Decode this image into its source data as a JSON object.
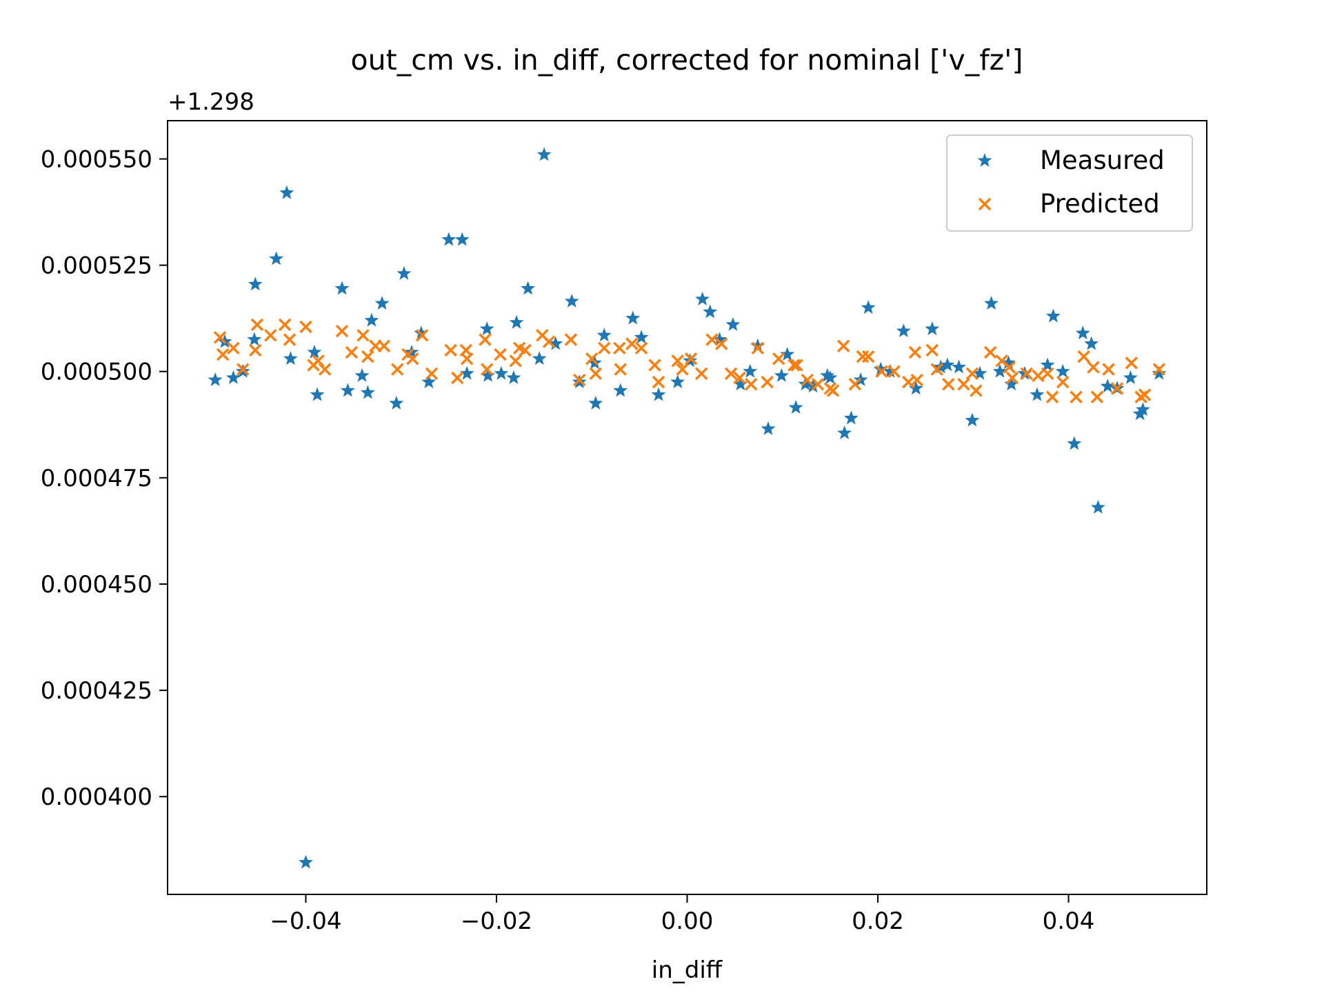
{
  "chart_data": {
    "type": "scatter",
    "title": "out_cm vs. in_diff, corrected for nominal ['v_fz']",
    "xlabel": "in_diff",
    "ylabel": "",
    "offset_label": "+1.298",
    "y_offset": 1.298,
    "xlim": [
      -0.0545,
      0.0545
    ],
    "ylim": [
      0.000377,
      0.000559
    ],
    "x_ticks": [
      -0.04,
      -0.02,
      0.0,
      0.02,
      0.04
    ],
    "x_tick_labels": [
      "−0.04",
      "−0.02",
      "0.00",
      "0.02",
      "0.04"
    ],
    "y_ticks": [
      0.0004,
      0.000425,
      0.00045,
      0.000475,
      0.0005,
      0.000525,
      0.00055
    ],
    "y_tick_labels": [
      "0.000400",
      "0.000425",
      "0.000450",
      "0.000475",
      "0.000500",
      "0.000525",
      "0.000550"
    ],
    "grid": false,
    "legend": {
      "position": "top-right",
      "entries": [
        "Measured",
        "Predicted"
      ]
    },
    "series": [
      {
        "name": "Measured",
        "marker": "star",
        "color": "#1f77b4",
        "points": [
          [
            -0.0495,
            0.000498
          ],
          [
            -0.0485,
            0.000507
          ],
          [
            -0.0476,
            0.0004985
          ],
          [
            -0.0466,
            0.0005
          ],
          [
            -0.0454,
            0.0005075
          ],
          [
            -0.0453,
            0.0005205
          ],
          [
            -0.0431,
            0.0005265
          ],
          [
            -0.042,
            0.000542
          ],
          [
            -0.0416,
            0.000503
          ],
          [
            -0.04,
            0.0003845
          ],
          [
            -0.0391,
            0.0005045
          ],
          [
            -0.0388,
            0.0004945
          ],
          [
            -0.0362,
            0.0005195
          ],
          [
            -0.0356,
            0.0004955
          ],
          [
            -0.0341,
            0.000499
          ],
          [
            -0.0335,
            0.000495
          ],
          [
            -0.0331,
            0.000512
          ],
          [
            -0.032,
            0.000516
          ],
          [
            -0.0305,
            0.0004925
          ],
          [
            -0.0297,
            0.000523
          ],
          [
            -0.0289,
            0.0005045
          ],
          [
            -0.0279,
            0.000509
          ],
          [
            -0.0271,
            0.0004975
          ],
          [
            -0.025,
            0.000531
          ],
          [
            -0.0236,
            0.000531
          ],
          [
            -0.0231,
            0.0004995
          ],
          [
            -0.021,
            0.00051
          ],
          [
            -0.0209,
            0.000499
          ],
          [
            -0.0195,
            0.0004995
          ],
          [
            -0.0182,
            0.0004985
          ],
          [
            -0.0179,
            0.0005115
          ],
          [
            -0.0167,
            0.0005195
          ],
          [
            -0.0155,
            0.000503
          ],
          [
            -0.015,
            0.000551
          ],
          [
            -0.0138,
            0.0005065
          ],
          [
            -0.0121,
            0.0005165
          ],
          [
            -0.0113,
            0.0004975
          ],
          [
            -0.0097,
            0.000502
          ],
          [
            -0.0096,
            0.0004925
          ],
          [
            -0.0087,
            0.0005085
          ],
          [
            -0.007,
            0.0004955
          ],
          [
            -0.0057,
            0.0005125
          ],
          [
            -0.0048,
            0.000508
          ],
          [
            -0.003,
            0.0004945
          ],
          [
            -0.001,
            0.0004975
          ],
          [
            0.0003,
            0.0005025
          ],
          [
            0.0016,
            0.000517
          ],
          [
            0.0024,
            0.000514
          ],
          [
            0.0034,
            0.0005075
          ],
          [
            0.0048,
            0.000511
          ],
          [
            0.0056,
            0.000497
          ],
          [
            0.0066,
            0.0005
          ],
          [
            0.0074,
            0.000506
          ],
          [
            0.0085,
            0.0004865
          ],
          [
            0.0099,
            0.000499
          ],
          [
            0.0105,
            0.000504
          ],
          [
            0.0114,
            0.0004915
          ],
          [
            0.0124,
            0.000497
          ],
          [
            0.0132,
            0.0004965
          ],
          [
            0.0147,
            0.000499
          ],
          [
            0.015,
            0.0004985
          ],
          [
            0.0165,
            0.0004855
          ],
          [
            0.0172,
            0.000489
          ],
          [
            0.0182,
            0.000498
          ],
          [
            0.019,
            0.000515
          ],
          [
            0.0203,
            0.0005005
          ],
          [
            0.0213,
            0.0005
          ],
          [
            0.0227,
            0.0005095
          ],
          [
            0.024,
            0.000496
          ],
          [
            0.0257,
            0.00051
          ],
          [
            0.0266,
            0.000501
          ],
          [
            0.0273,
            0.0005015
          ],
          [
            0.0285,
            0.000501
          ],
          [
            0.0299,
            0.0004885
          ],
          [
            0.0307,
            0.0004995
          ],
          [
            0.0319,
            0.000516
          ],
          [
            0.0328,
            0.0005
          ],
          [
            0.0337,
            0.000502
          ],
          [
            0.034,
            0.000497
          ],
          [
            0.0354,
            0.0004995
          ],
          [
            0.0367,
            0.0004945
          ],
          [
            0.0378,
            0.0005015
          ],
          [
            0.0384,
            0.000513
          ],
          [
            0.0394,
            0.0005
          ],
          [
            0.0406,
            0.000483
          ],
          [
            0.0415,
            0.000509
          ],
          [
            0.0424,
            0.0005065
          ],
          [
            0.0431,
            0.000468
          ],
          [
            0.0441,
            0.0004965
          ],
          [
            0.0451,
            0.000496
          ],
          [
            0.0465,
            0.0004985
          ],
          [
            0.0475,
            0.00049
          ],
          [
            0.0478,
            0.000491
          ],
          [
            0.0495,
            0.0004995
          ]
        ]
      },
      {
        "name": "Predicted",
        "marker": "x",
        "color": "#ff7f0e",
        "points": [
          [
            -0.049,
            0.000508
          ],
          [
            -0.0487,
            0.000504
          ],
          [
            -0.0476,
            0.0005055
          ],
          [
            -0.0466,
            0.0005005
          ],
          [
            -0.0453,
            0.000505
          ],
          [
            -0.0451,
            0.000511
          ],
          [
            -0.0437,
            0.0005085
          ],
          [
            -0.0422,
            0.000511
          ],
          [
            -0.0417,
            0.0005075
          ],
          [
            -0.04,
            0.0005105
          ],
          [
            -0.0392,
            0.0005015
          ],
          [
            -0.0387,
            0.0005025
          ],
          [
            -0.038,
            0.0005005
          ],
          [
            -0.0362,
            0.0005095
          ],
          [
            -0.0352,
            0.0005045
          ],
          [
            -0.034,
            0.0005085
          ],
          [
            -0.0335,
            0.0005035
          ],
          [
            -0.0327,
            0.000506
          ],
          [
            -0.0318,
            0.000506
          ],
          [
            -0.0304,
            0.0005005
          ],
          [
            -0.0293,
            0.000504
          ],
          [
            -0.0288,
            0.000503
          ],
          [
            -0.0278,
            0.0005085
          ],
          [
            -0.0268,
            0.0004995
          ],
          [
            -0.0248,
            0.000505
          ],
          [
            -0.0241,
            0.0004985
          ],
          [
            -0.0232,
            0.000505
          ],
          [
            -0.0231,
            0.000503
          ],
          [
            -0.0212,
            0.0005075
          ],
          [
            -0.021,
            0.0005005
          ],
          [
            -0.0196,
            0.000504
          ],
          [
            -0.018,
            0.0005025
          ],
          [
            -0.0176,
            0.0005055
          ],
          [
            -0.017,
            0.000505
          ],
          [
            -0.0152,
            0.0005085
          ],
          [
            -0.0145,
            0.000507
          ],
          [
            -0.0122,
            0.0005075
          ],
          [
            -0.0113,
            0.000498
          ],
          [
            -0.01,
            0.000503
          ],
          [
            -0.0096,
            0.0004995
          ],
          [
            -0.0087,
            0.0005055
          ],
          [
            -0.0071,
            0.0005055
          ],
          [
            -0.007,
            0.0005005
          ],
          [
            -0.0058,
            0.0005065
          ],
          [
            -0.0048,
            0.0005055
          ],
          [
            -0.0034,
            0.0005015
          ],
          [
            -0.003,
            0.0004975
          ],
          [
            -0.001,
            0.0005025
          ],
          [
            -0.0005,
            0.0005005
          ],
          [
            0.0004,
            0.000503
          ],
          [
            0.0015,
            0.0004995
          ],
          [
            0.0026,
            0.0005075
          ],
          [
            0.0036,
            0.0005065
          ],
          [
            0.0046,
            0.0004995
          ],
          [
            0.0055,
            0.0004985
          ],
          [
            0.0067,
            0.000497
          ],
          [
            0.0074,
            0.0005055
          ],
          [
            0.0084,
            0.0004975
          ],
          [
            0.0096,
            0.000503
          ],
          [
            0.0112,
            0.0005015
          ],
          [
            0.0115,
            0.0005015
          ],
          [
            0.0126,
            0.000498
          ],
          [
            0.0137,
            0.000497
          ],
          [
            0.015,
            0.000496
          ],
          [
            0.0153,
            0.0004955
          ],
          [
            0.0164,
            0.000506
          ],
          [
            0.0176,
            0.000497
          ],
          [
            0.0184,
            0.0005035
          ],
          [
            0.019,
            0.0005035
          ],
          [
            0.0204,
            0.0005
          ],
          [
            0.0217,
            0.0005
          ],
          [
            0.0232,
            0.0004975
          ],
          [
            0.0239,
            0.0005045
          ],
          [
            0.0241,
            0.000498
          ],
          [
            0.0257,
            0.000505
          ],
          [
            0.0262,
            0.0005005
          ],
          [
            0.0274,
            0.000497
          ],
          [
            0.029,
            0.000497
          ],
          [
            0.0299,
            0.0004995
          ],
          [
            0.0303,
            0.0004955
          ],
          [
            0.0318,
            0.0005045
          ],
          [
            0.033,
            0.0005025
          ],
          [
            0.0338,
            0.000501
          ],
          [
            0.0341,
            0.0004985
          ],
          [
            0.0356,
            0.0004995
          ],
          [
            0.0368,
            0.000499
          ],
          [
            0.0378,
            0.0004995
          ],
          [
            0.0383,
            0.000494
          ],
          [
            0.0394,
            0.0004975
          ],
          [
            0.0408,
            0.000494
          ],
          [
            0.0416,
            0.0005035
          ],
          [
            0.0426,
            0.000501
          ],
          [
            0.043,
            0.000494
          ],
          [
            0.0442,
            0.0005005
          ],
          [
            0.0451,
            0.000496
          ],
          [
            0.0466,
            0.000502
          ],
          [
            0.0476,
            0.000494
          ],
          [
            0.048,
            0.0004945
          ],
          [
            0.0495,
            0.0005005
          ]
        ]
      }
    ]
  }
}
